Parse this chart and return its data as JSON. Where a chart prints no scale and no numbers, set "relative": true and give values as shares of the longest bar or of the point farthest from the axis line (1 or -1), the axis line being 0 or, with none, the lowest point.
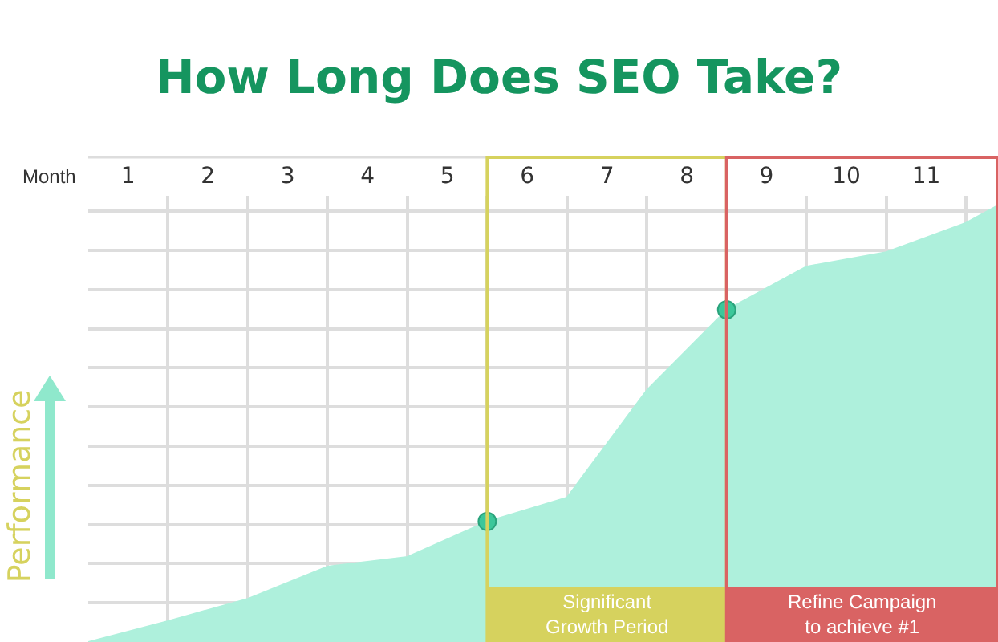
{
  "chart_data": {
    "type": "area",
    "title": "How Long Does SEO Take?",
    "xlabel": "Month",
    "ylabel": "Performance",
    "relative": true,
    "x": [
      0,
      1,
      2,
      3,
      4,
      5,
      6,
      7,
      8,
      9,
      10,
      11,
      11.4
    ],
    "series": [
      {
        "color": "#aef0dc",
        "values": [
          0,
          0.048,
          0.099,
          0.173,
          0.195,
          0.276,
          0.331,
          0.577,
          0.761,
          0.86,
          0.893,
          0.96,
          1
        ]
      },
      {
        "type": "scatter",
        "color": "#3cc79a",
        "marker": "circle",
        "x": [
          5,
          8
        ],
        "values": [
          0.276,
          0.761
        ]
      }
    ],
    "xlim": [
      0,
      11.4
    ],
    "xticks": [
      {
        "value": 0.5,
        "label": "1"
      },
      {
        "value": 1.5,
        "label": "2"
      },
      {
        "value": 2.5,
        "label": "3"
      },
      {
        "value": 3.5,
        "label": "4"
      },
      {
        "value": 4.5,
        "label": "5"
      },
      {
        "value": 5.5,
        "label": "6"
      },
      {
        "value": 6.5,
        "label": "7"
      },
      {
        "value": 7.5,
        "label": "8"
      },
      {
        "value": 8.5,
        "label": "9"
      },
      {
        "value": 9.5,
        "label": "10"
      },
      {
        "value": 10.5,
        "label": "11"
      }
    ],
    "bands": [
      {
        "axis": "x",
        "from": 5,
        "to": 8,
        "label": "Significant Growth Period",
        "color": "#d6d25e"
      },
      {
        "axis": "x",
        "from": 8,
        "to": 11.4,
        "label": "Refine Campaign to achieve #1",
        "color": "#d96363"
      }
    ],
    "grid": true,
    "legend": false
  }
}
